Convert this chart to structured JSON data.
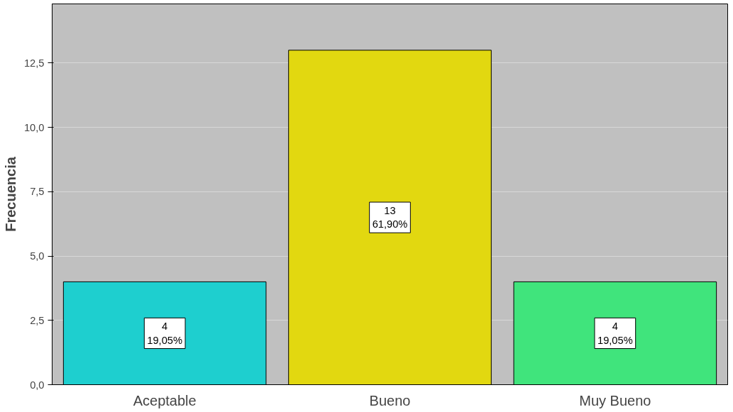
{
  "chart_data": {
    "type": "bar",
    "ylabel": "Frecuencia",
    "categories": [
      "Aceptable",
      "Bueno",
      "Muy Bueno"
    ],
    "values": [
      4,
      13,
      4
    ],
    "colors": [
      "#1ecfcf",
      "#e2d810",
      "#40e47c"
    ],
    "value_labels": [
      "4\n19,05%",
      "13\n61,90%",
      "4\n19,05%"
    ],
    "ylim": [
      0,
      14.8
    ],
    "yticks": [
      {
        "value": 0,
        "label": "0,0"
      },
      {
        "value": 2.5,
        "label": "2,5"
      },
      {
        "value": 5,
        "label": "5,0"
      },
      {
        "value": 7.5,
        "label": "7,5"
      },
      {
        "value": 10,
        "label": "10,0"
      },
      {
        "value": 12.5,
        "label": "12,5"
      }
    ],
    "grid": "y"
  }
}
